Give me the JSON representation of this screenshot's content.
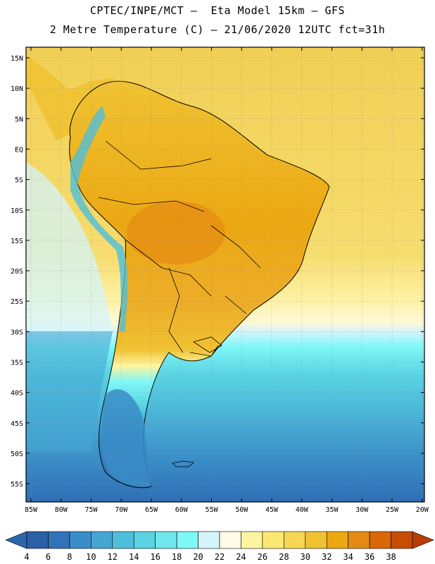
{
  "header": {
    "line1": "CPTEC/INPE/MCT –  Eta Model 15km – GFS",
    "line2": "2 Metre Temperature (C) – 21/06/2020 12UTC fct=31h"
  },
  "map": {
    "lat_labels": [
      "15N",
      "10N",
      "5N",
      "EQ",
      "5S",
      "10S",
      "15S",
      "20S",
      "25S",
      "30S",
      "35S",
      "40S",
      "45S",
      "50S",
      "55S"
    ],
    "lon_labels": [
      "85W",
      "80W",
      "75W",
      "70W",
      "65W",
      "60W",
      "55W",
      "50W",
      "45W",
      "40W",
      "35W",
      "30W",
      "25W",
      "20W"
    ]
  },
  "colorbar": {
    "values": [
      "4",
      "6",
      "8",
      "10",
      "12",
      "14",
      "16",
      "18",
      "20",
      "22",
      "24",
      "26",
      "28",
      "30",
      "32",
      "34",
      "36",
      "38"
    ],
    "colors": [
      "#2b5fa6",
      "#3172b8",
      "#3a8cc6",
      "#46a6d2",
      "#4ebfdb",
      "#5ad3e3",
      "#6ee6ec",
      "#7ef7f7",
      "#d4f4fb",
      "#fffbe6",
      "#fff5a0",
      "#fbe872",
      "#f6d654",
      "#f0c232",
      "#eba813",
      "#e58a12",
      "#d86808",
      "#c74c04"
    ],
    "min_color": "#2c67ac",
    "max_color": "#b83d04"
  }
}
